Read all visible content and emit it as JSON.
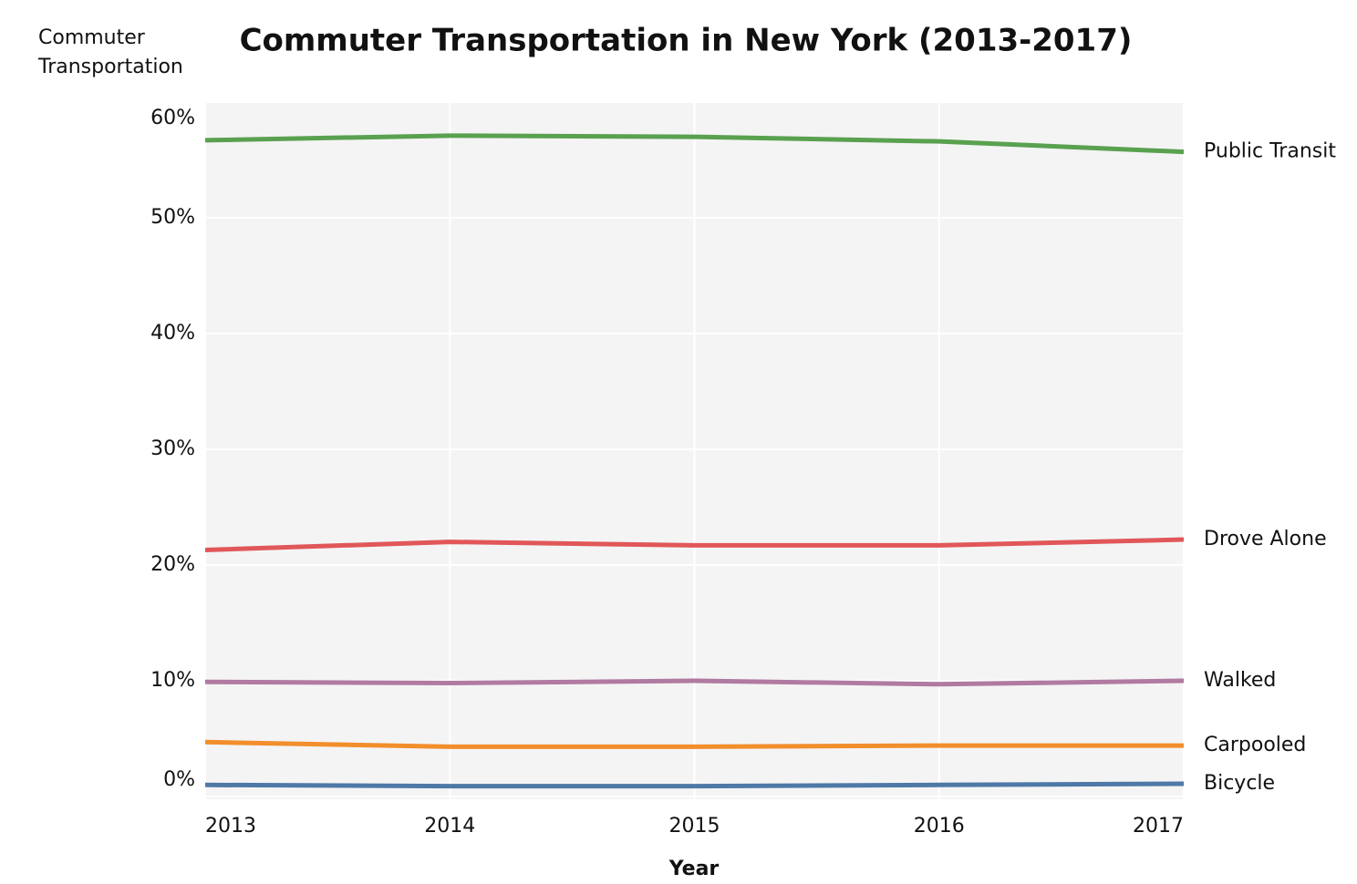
{
  "chart_data": {
    "type": "line",
    "title": "Commuter Transportation in New York (2013-2017)",
    "y_label": "Commuter Transportation",
    "x_label": "Year",
    "x": [
      2013,
      2014,
      2015,
      2016,
      2017
    ],
    "xlim": [
      2013,
      2017
    ],
    "xticks": [
      2013,
      2014,
      2015,
      2016,
      2017
    ],
    "ylim": [
      0,
      60
    ],
    "yticks": [
      {
        "value": 0,
        "label": "0%"
      },
      {
        "value": 10,
        "label": "10%"
      },
      {
        "value": 20,
        "label": "20%"
      },
      {
        "value": 30,
        "label": "30%"
      },
      {
        "value": 40,
        "label": "40%"
      },
      {
        "value": 50,
        "label": "50%"
      },
      {
        "value": 60,
        "label": "60%"
      }
    ],
    "grid": true,
    "series": [
      {
        "name": "Public Transit",
        "color": "#59a14f",
        "values": [
          56.7,
          57.1,
          57.0,
          56.6,
          55.7
        ]
      },
      {
        "name": "Drove Alone",
        "color": "#e15759",
        "values": [
          21.3,
          22.0,
          21.7,
          21.7,
          22.2
        ]
      },
      {
        "name": "Walked",
        "color": "#b07aa1",
        "values": [
          9.9,
          9.8,
          10.0,
          9.7,
          10.0
        ]
      },
      {
        "name": "Carpooled",
        "color": "#f28e2b",
        "values": [
          4.7,
          4.3,
          4.3,
          4.4,
          4.4
        ]
      },
      {
        "name": "Bicycle",
        "color": "#4e79a7",
        "values": [
          1.0,
          0.9,
          0.9,
          1.0,
          1.1
        ]
      }
    ]
  }
}
